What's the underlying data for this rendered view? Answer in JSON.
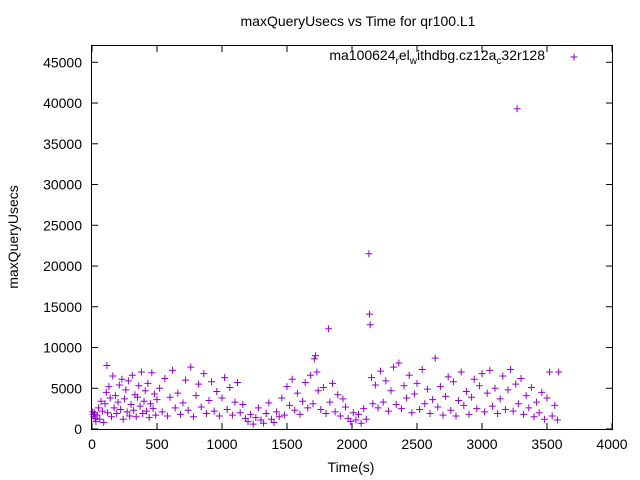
{
  "colors": {
    "series": "#9400d3",
    "axis": "#000000",
    "background": "#ffffff"
  },
  "chart_data": {
    "type": "scatter",
    "title": "maxQueryUsecs vs Time for qr100.L1",
    "xlabel": "Time(s)",
    "ylabel": "maxQueryUsecs",
    "xlim": [
      0,
      4000
    ],
    "ylim": [
      0,
      47000
    ],
    "xticks": [
      0,
      500,
      1000,
      1500,
      2000,
      2500,
      3000,
      3500,
      4000
    ],
    "yticks": [
      0,
      5000,
      10000,
      15000,
      20000,
      25000,
      30000,
      35000,
      40000,
      45000
    ],
    "grid": false,
    "legend_position": "top-right",
    "legend": {
      "parts": [
        "ma100624",
        "r",
        "el",
        "w",
        "ithdbg.cz12a",
        "c",
        "32r128"
      ],
      "subscript": [
        false,
        true,
        false,
        true,
        false,
        true,
        false
      ]
    },
    "series": [
      {
        "marker": "+",
        "color": "#9400d3",
        "points": [
          [
            5,
            2100
          ],
          [
            10,
            1800
          ],
          [
            15,
            1500
          ],
          [
            20,
            2000
          ],
          [
            25,
            1300
          ],
          [
            30,
            900
          ],
          [
            40,
            1700
          ],
          [
            50,
            2600
          ],
          [
            60,
            1200
          ],
          [
            70,
            3400
          ],
          [
            80,
            2200
          ],
          [
            90,
            800
          ],
          [
            100,
            3100
          ],
          [
            110,
            4500
          ],
          [
            115,
            7800
          ],
          [
            120,
            2000
          ],
          [
            130,
            5200
          ],
          [
            140,
            3800
          ],
          [
            150,
            1500
          ],
          [
            160,
            6500
          ],
          [
            170,
            2600
          ],
          [
            180,
            4100
          ],
          [
            190,
            1900
          ],
          [
            200,
            3300
          ],
          [
            210,
            5400
          ],
          [
            220,
            2400
          ],
          [
            230,
            6100
          ],
          [
            240,
            1200
          ],
          [
            250,
            3700
          ],
          [
            260,
            4800
          ],
          [
            270,
            2100
          ],
          [
            280,
            5900
          ],
          [
            290,
            1600
          ],
          [
            300,
            3000
          ],
          [
            310,
            6600
          ],
          [
            320,
            2300
          ],
          [
            330,
            4200
          ],
          [
            340,
            1500
          ],
          [
            350,
            3900
          ],
          [
            360,
            5300
          ],
          [
            370,
            2800
          ],
          [
            380,
            7000
          ],
          [
            390,
            1900
          ],
          [
            400,
            3400
          ],
          [
            410,
            4700
          ],
          [
            420,
            2200
          ],
          [
            430,
            5600
          ],
          [
            440,
            1400
          ],
          [
            450,
            3100
          ],
          [
            460,
            6900
          ],
          [
            470,
            2500
          ],
          [
            480,
            4300
          ],
          [
            490,
            1700
          ],
          [
            500,
            3600
          ],
          [
            520,
            5000
          ],
          [
            540,
            2100
          ],
          [
            560,
            6200
          ],
          [
            580,
            1600
          ],
          [
            600,
            3900
          ],
          [
            620,
            7200
          ],
          [
            640,
            2600
          ],
          [
            660,
            4400
          ],
          [
            680,
            1800
          ],
          [
            700,
            3200
          ],
          [
            720,
            6000
          ],
          [
            740,
            2300
          ],
          [
            760,
            7600
          ],
          [
            780,
            1500
          ],
          [
            800,
            4100
          ],
          [
            820,
            5500
          ],
          [
            840,
            2700
          ],
          [
            860,
            6800
          ],
          [
            880,
            1900
          ],
          [
            900,
            3500
          ],
          [
            920,
            5800
          ],
          [
            940,
            2200
          ],
          [
            960,
            4600
          ],
          [
            980,
            1600
          ],
          [
            1000,
            3800
          ],
          [
            1020,
            6300
          ],
          [
            1040,
            2400
          ],
          [
            1060,
            5100
          ],
          [
            1080,
            1700
          ],
          [
            1100,
            3300
          ],
          [
            1120,
            5700
          ],
          [
            1140,
            2000
          ],
          [
            1160,
            3000
          ],
          [
            1180,
            1300
          ],
          [
            1200,
            900
          ],
          [
            1220,
            1800
          ],
          [
            1240,
            600
          ],
          [
            1260,
            1400
          ],
          [
            1280,
            2600
          ],
          [
            1300,
            1100
          ],
          [
            1320,
            700
          ],
          [
            1340,
            1900
          ],
          [
            1360,
            3200
          ],
          [
            1380,
            1200
          ],
          [
            1400,
            800
          ],
          [
            1420,
            2100
          ],
          [
            1440,
            1500
          ],
          [
            1460,
            3800
          ],
          [
            1480,
            1700
          ],
          [
            1500,
            5200
          ],
          [
            1520,
            2900
          ],
          [
            1540,
            6100
          ],
          [
            1560,
            2300
          ],
          [
            1580,
            4400
          ],
          [
            1600,
            1800
          ],
          [
            1620,
            3400
          ],
          [
            1640,
            5700
          ],
          [
            1660,
            2600
          ],
          [
            1680,
            6600
          ],
          [
            1700,
            3100
          ],
          [
            1710,
            8600
          ],
          [
            1720,
            9000
          ],
          [
            1730,
            7000
          ],
          [
            1740,
            4700
          ],
          [
            1760,
            2400
          ],
          [
            1780,
            5100
          ],
          [
            1800,
            1900
          ],
          [
            1820,
            12300
          ],
          [
            1830,
            3300
          ],
          [
            1850,
            5600
          ],
          [
            1870,
            2100
          ],
          [
            1890,
            4200
          ],
          [
            1910,
            1600
          ],
          [
            1930,
            3700
          ],
          [
            1950,
            2700
          ],
          [
            1970,
            1300
          ],
          [
            1990,
            900
          ],
          [
            2010,
            2000
          ],
          [
            2030,
            1100
          ],
          [
            2050,
            1800
          ],
          [
            2070,
            700
          ],
          [
            2090,
            2500
          ],
          [
            2110,
            1200
          ],
          [
            2130,
            21500
          ],
          [
            2135,
            14100
          ],
          [
            2140,
            12800
          ],
          [
            2150,
            6300
          ],
          [
            2160,
            3100
          ],
          [
            2180,
            5400
          ],
          [
            2200,
            2600
          ],
          [
            2220,
            7100
          ],
          [
            2240,
            3300
          ],
          [
            2260,
            5900
          ],
          [
            2280,
            2200
          ],
          [
            2300,
            4700
          ],
          [
            2320,
            7600
          ],
          [
            2340,
            3000
          ],
          [
            2360,
            8100
          ],
          [
            2380,
            2500
          ],
          [
            2400,
            5300
          ],
          [
            2420,
            3800
          ],
          [
            2440,
            6600
          ],
          [
            2460,
            2000
          ],
          [
            2480,
            4300
          ],
          [
            2500,
            5600
          ],
          [
            2520,
            2400
          ],
          [
            2540,
            7300
          ],
          [
            2560,
            3100
          ],
          [
            2580,
            4900
          ],
          [
            2600,
            1900
          ],
          [
            2620,
            3600
          ],
          [
            2640,
            8700
          ],
          [
            2660,
            2700
          ],
          [
            2680,
            5200
          ],
          [
            2700,
            1700
          ],
          [
            2720,
            4000
          ],
          [
            2740,
            6400
          ],
          [
            2760,
            2300
          ],
          [
            2780,
            5800
          ],
          [
            2800,
            1600
          ],
          [
            2820,
            3500
          ],
          [
            2840,
            7000
          ],
          [
            2860,
            2900
          ],
          [
            2880,
            4600
          ],
          [
            2900,
            1800
          ],
          [
            2920,
            3900
          ],
          [
            2940,
            6100
          ],
          [
            2960,
            2500
          ],
          [
            2980,
            5300
          ],
          [
            3000,
            6800
          ],
          [
            3020,
            2100
          ],
          [
            3040,
            4400
          ],
          [
            3060,
            7200
          ],
          [
            3080,
            2800
          ],
          [
            3100,
            5000
          ],
          [
            3120,
            1900
          ],
          [
            3140,
            3700
          ],
          [
            3160,
            6500
          ],
          [
            3180,
            2400
          ],
          [
            3200,
            4800
          ],
          [
            3220,
            7300
          ],
          [
            3240,
            2200
          ],
          [
            3260,
            5500
          ],
          [
            3270,
            39300
          ],
          [
            3280,
            3100
          ],
          [
            3300,
            6200
          ],
          [
            3320,
            1800
          ],
          [
            3340,
            4100
          ],
          [
            3360,
            2600
          ],
          [
            3380,
            5100
          ],
          [
            3400,
            1500
          ],
          [
            3420,
            3300
          ],
          [
            3440,
            2000
          ],
          [
            3460,
            4500
          ],
          [
            3480,
            1200
          ],
          [
            3500,
            3800
          ],
          [
            3520,
            7000
          ],
          [
            3540,
            1600
          ],
          [
            3560,
            2900
          ],
          [
            3580,
            1100
          ],
          [
            3590,
            7000
          ]
        ]
      }
    ]
  }
}
